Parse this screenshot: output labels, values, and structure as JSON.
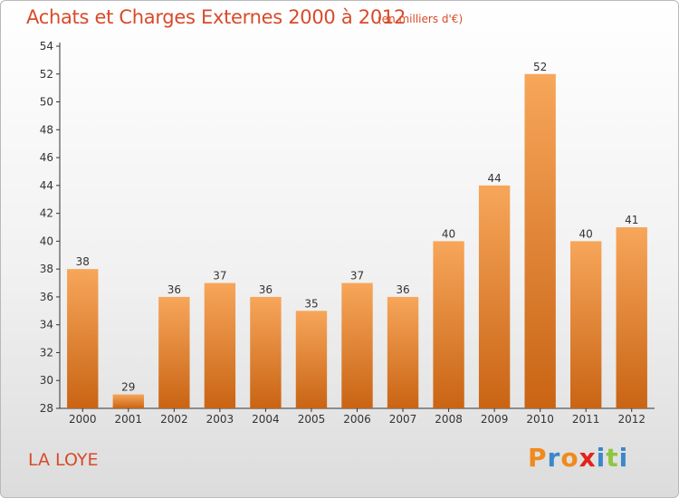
{
  "page": {
    "title": "Achats et Charges Externes 2000 à 2012",
    "unit_note": "(en milliers d'€)",
    "commune": "LA LOYE",
    "logo_text": "Proxiti"
  },
  "colors": {
    "title": "#d94a2a",
    "bar_top": "#f7a65a",
    "bar_bottom": "#c96414",
    "axis": "#333333",
    "logo_letters": [
      "#f18a1c",
      "#3b87c9",
      "#f18a1c",
      "#e2231a",
      "#3b87c9",
      "#8ec641",
      "#3b87c9"
    ]
  },
  "chart_data": {
    "type": "bar",
    "title": "Achats et Charges Externes 2000 à 2012",
    "subtitle": "(en milliers d'€)",
    "xlabel": "",
    "ylabel": "",
    "categories": [
      "2000",
      "2001",
      "2002",
      "2003",
      "2004",
      "2005",
      "2006",
      "2007",
      "2008",
      "2009",
      "2010",
      "2011",
      "2012"
    ],
    "values": [
      38,
      29,
      36,
      37,
      36,
      35,
      37,
      36,
      40,
      44,
      52,
      40,
      41
    ],
    "ylim": [
      28,
      54
    ],
    "yticks": [
      28,
      30,
      32,
      34,
      36,
      38,
      40,
      42,
      44,
      46,
      48,
      50,
      52,
      54
    ],
    "grid": false,
    "legend": "none"
  }
}
